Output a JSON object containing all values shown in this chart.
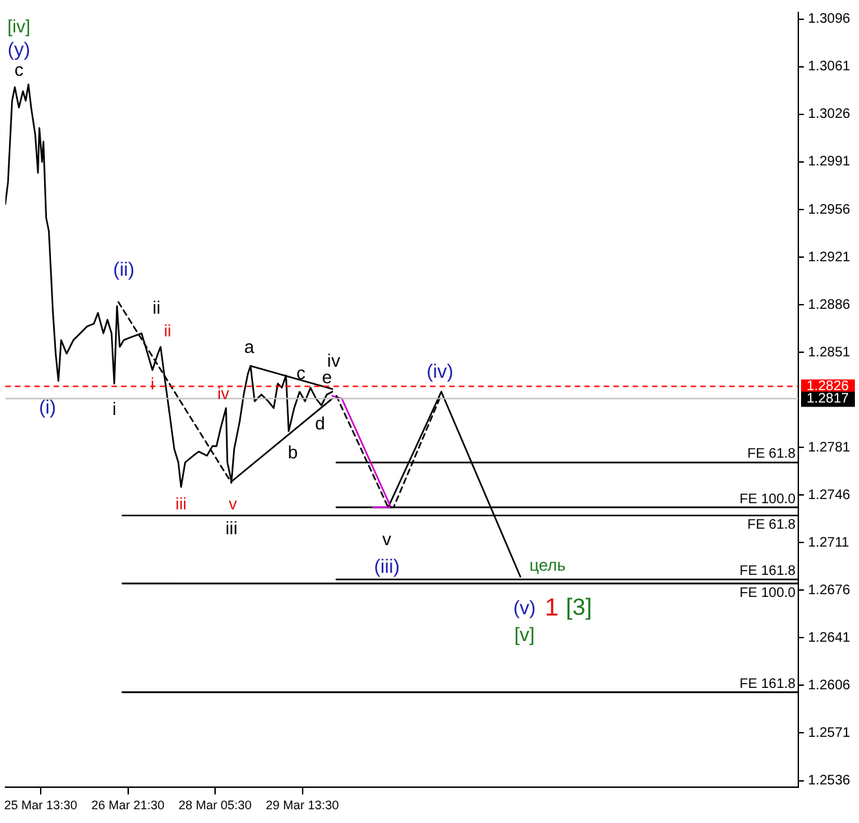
{
  "chart_data": {
    "type": "line",
    "xlim": [
      "--03-25T00:30",
      "--04-06T03:30"
    ],
    "xticks": [
      {
        "value": "--03-25T13:30",
        "label": "25 Mar 13:30"
      },
      {
        "value": "--03-26T21:30",
        "label": "26 Mar 21:30"
      },
      {
        "value": "--03-28T05:30",
        "label": "28 Mar 05:30"
      },
      {
        "value": "--03-29T13:30",
        "label": "29 Mar 13:30"
      }
    ],
    "ylim": [
      1.2531,
      1.3101
    ],
    "yticks": [
      1.2536,
      1.2571,
      1.2606,
      1.2641,
      1.2676,
      1.2711,
      1.2746,
      1.2781,
      1.2851,
      1.2886,
      1.2921,
      1.2956,
      1.2991,
      1.3026,
      1.3061,
      1.3096
    ],
    "grid": false,
    "legend": false,
    "marker": "none",
    "series": [
      {
        "color": "#000000",
        "x": [
          "--03-25T00:30",
          "--03-25T01:30",
          "--03-25T03:00",
          "--03-25T04:00",
          "--03-25T05:30",
          "--03-25T07:00",
          "--03-25T08:00",
          "--03-25T09:00",
          "--03-25T10:00",
          "--03-25T11:30",
          "--03-25T12:30",
          "--03-25T13:00",
          "--03-25T14:00",
          "--03-25T14:30",
          "--03-25T15:30",
          "--03-25T16:30",
          "--03-25T18:00",
          "--03-25T19:00",
          "--03-25T20:00",
          "--03-25T21:00",
          "--03-25T23:00",
          "--03-26T01:30",
          "--03-26T04:00",
          "--03-26T06:30",
          "--03-26T09:00",
          "--03-26T10:30",
          "--03-26T12:30",
          "--03-26T14:00",
          "--03-26T15:30",
          "--03-26T16:30",
          "--03-26T17:30",
          "--03-26T18:30",
          "--03-26T20:00",
          "--03-26T22:30",
          "--03-27T02:30",
          "--03-27T04:00",
          "--03-27T06:30",
          "--03-27T08:30",
          "--03-27T09:30",
          "--03-27T11:00",
          "--03-27T12:30",
          "--03-27T14:30",
          "--03-27T16:00",
          "--03-27T17:00",
          "--03-27T18:30",
          "--03-27T21:30",
          "--03-27T23:30",
          "--03-28T02:30",
          "--03-28T04:30",
          "--03-28T06:00",
          "--03-28T07:30",
          "--03-28T09:30",
          "--03-28T10:00",
          "--03-28T11:30",
          "--03-28T12:30",
          "--03-28T14:30",
          "--03-28T16:00",
          "--03-28T17:30",
          "--03-28T18:30",
          "--03-28T20:00",
          "--03-28T22:30",
          "--03-29T01:00",
          "--03-29T03:00",
          "--03-29T04:30",
          "--03-29T06:00",
          "--03-29T07:30",
          "--03-29T08:30",
          "--03-29T10:30",
          "--03-29T12:30",
          "--03-29T14:30",
          "--03-29T16:30",
          "--03-29T18:30",
          "--03-29T20:30",
          "--03-29T22:30",
          "--03-30T00:30"
        ],
        "values": [
          1.296,
          1.2976,
          1.3036,
          1.3046,
          1.3031,
          1.3043,
          1.3036,
          1.3048,
          1.3031,
          1.3011,
          1.2983,
          1.3016,
          1.2991,
          1.3006,
          1.295,
          1.294,
          1.288,
          1.285,
          1.283,
          1.286,
          1.285,
          1.286,
          1.2865,
          1.287,
          1.2872,
          1.288,
          1.2865,
          1.2875,
          1.2865,
          1.2828,
          1.2885,
          1.2855,
          1.286,
          1.2862,
          1.2865,
          1.2855,
          1.2838,
          1.285,
          1.2855,
          1.2832,
          1.281,
          1.278,
          1.277,
          1.2752,
          1.277,
          1.2775,
          1.2778,
          1.2775,
          1.2782,
          1.2782,
          1.2795,
          1.281,
          1.277,
          1.2756,
          1.278,
          1.28,
          1.282,
          1.2835,
          1.2841,
          1.2815,
          1.282,
          1.2815,
          1.281,
          1.2828,
          1.2825,
          1.2834,
          1.2793,
          1.281,
          1.2822,
          1.2815,
          1.2825,
          1.2817,
          1.2812,
          1.282,
          1.2822
        ]
      },
      {
        "color": "#000000",
        "line_style": "dashed",
        "x": [
          "--03-26T18:00",
          "--03-28T11:30"
        ],
        "values": [
          1.2888,
          1.2755
        ]
      },
      {
        "color": "#000000",
        "x": [
          "--03-28T18:30",
          "--03-30T00:30"
        ],
        "values": [
          1.2841,
          1.2824
        ]
      },
      {
        "color": "#000000",
        "x": [
          "--03-28T11:30",
          "--03-30T00:30"
        ],
        "values": [
          1.2756,
          1.2817
        ]
      },
      {
        "color": "#000000",
        "line_style": "dashed",
        "x": [
          "--03-30T02:00",
          "--03-30T21:00",
          "--03-30T23:00",
          "--03-31T16:30"
        ],
        "values": [
          1.2819,
          1.2737,
          1.2737,
          1.282
        ]
      },
      {
        "color": "#cc00cc",
        "x": [
          "--03-30T00:30",
          "--03-30T04:00",
          "--03-30T22:00"
        ],
        "values": [
          1.2819,
          1.2817,
          1.2737
        ]
      },
      {
        "color": "#cc00cc",
        "x": [
          "--03-30T15:30",
          "--03-30T22:00"
        ],
        "values": [
          1.2737,
          1.2737
        ]
      },
      {
        "color": "#000000",
        "x": [
          "--03-30T21:00",
          "--03-31T16:30",
          "--04-01T21:30"
        ],
        "values": [
          1.2737,
          1.2822,
          1.2686
        ]
      },
      {
        "color": "#000000",
        "x": [
          "--03-30T02:00",
          "--04-06T03:30"
        ],
        "values": [
          1.277,
          1.277
        ]
      },
      {
        "color": "#000000",
        "x": [
          "--03-30T02:00",
          "--04-06T03:30"
        ],
        "values": [
          1.2737,
          1.2737
        ]
      },
      {
        "color": "#000000",
        "x": [
          "--03-26T19:30",
          "--04-06T03:30"
        ],
        "values": [
          1.2731,
          1.2731
        ]
      },
      {
        "color": "#000000",
        "x": [
          "--03-30T02:00",
          "--04-06T03:30"
        ],
        "values": [
          1.2684,
          1.2684
        ]
      },
      {
        "color": "#000000",
        "x": [
          "--03-26T19:30",
          "--04-06T03:30"
        ],
        "values": [
          1.2681,
          1.2681
        ]
      },
      {
        "color": "#000000",
        "x": [
          "--03-26T19:30",
          "--04-06T03:30"
        ],
        "values": [
          1.2601,
          1.2601
        ]
      }
    ],
    "ref_lines": [
      {
        "axis": "y",
        "value": 1.2826,
        "label": "1.2826",
        "color": "#ff0000",
        "line_style": "dashed"
      },
      {
        "axis": "y",
        "value": 1.2817,
        "label": "1.2817",
        "color": "#c0c0c0",
        "line_style": "solid"
      }
    ],
    "annotations": [
      "[iv]",
      "(y)",
      "c",
      "(ii)",
      "ii",
      {
        "text": "ii",
        "x": "--03-27T09:30",
        "y": 1.2855
      },
      "i",
      "(i)",
      {
        "text": "i",
        "x": "--03-26T16:30",
        "y": 1.2828
      },
      "iv",
      "a",
      "c",
      "e",
      "iv",
      "d",
      "b",
      "iii",
      "v",
      "iii",
      "v",
      "(iii)",
      "(iv)",
      "цель",
      "(v)",
      "1",
      "[3]",
      "[v]",
      {
        "text": "FE 61.8",
        "x": "--04-06T03:30",
        "y": 1.277
      },
      {
        "text": "FE 100.0",
        "x": "--04-06T03:30",
        "y": 1.2737
      },
      {
        "text": "FE 61.8",
        "x": "--04-06T03:30",
        "y": 1.2731
      },
      {
        "text": "FE 161.8",
        "x": "--04-06T03:30",
        "y": 1.2684
      },
      {
        "text": "FE 100.0",
        "x": "--04-06T03:30",
        "y": 1.2681
      },
      {
        "text": "FE 161.8",
        "x": "--04-06T03:30",
        "y": 1.2601
      }
    ]
  }
}
